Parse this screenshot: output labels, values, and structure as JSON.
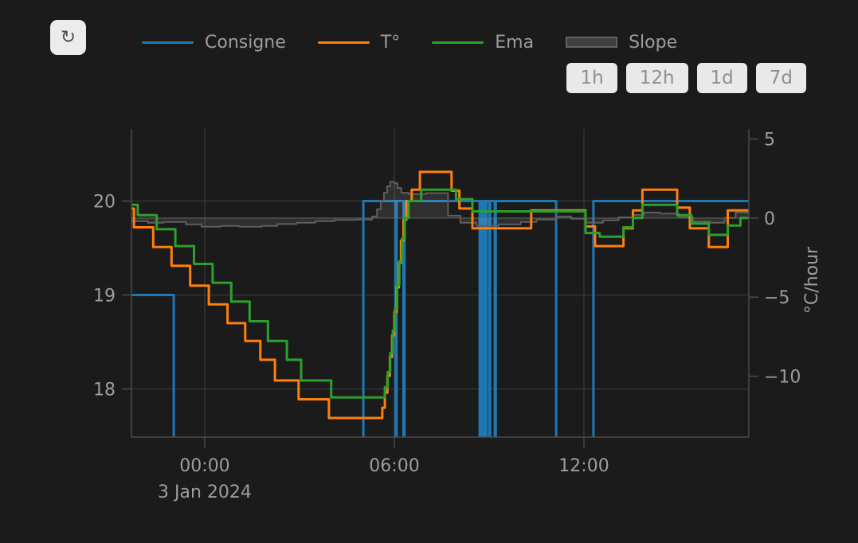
{
  "toolbar": {
    "refresh_icon": "↻"
  },
  "legend": {
    "items": [
      {
        "label": "Consigne",
        "color": "#1f77b4",
        "swatch": "line"
      },
      {
        "label": "T°",
        "color": "#ff7f0e",
        "swatch": "line"
      },
      {
        "label": "Ema",
        "color": "#2ca02c",
        "swatch": "line"
      },
      {
        "label": "Slope",
        "color": "#626262",
        "swatch": "area"
      }
    ]
  },
  "range_buttons": [
    {
      "label": "1h"
    },
    {
      "label": "12h"
    },
    {
      "label": "1d"
    },
    {
      "label": "7d"
    }
  ],
  "chart_data": {
    "type": "line",
    "note": "step lines; x = hours from 2024-01-03 00:00 (negative = evening of 2 Jan)",
    "x_axis": {
      "range": [
        -2.319,
        17.218
      ],
      "ticks": [
        {
          "v": 0,
          "label": "00:00"
        },
        {
          "v": 6,
          "label": "06:00"
        },
        {
          "v": 12,
          "label": "12:00"
        }
      ],
      "date_label": "3 Jan 2024"
    },
    "y_left": {
      "range": [
        17.487,
        20.767
      ],
      "ticks": [
        {
          "v": 20,
          "label": "20"
        },
        {
          "v": 19,
          "label": "19"
        },
        {
          "v": 18,
          "label": "18"
        }
      ]
    },
    "y_right": {
      "title": "°C/hour",
      "range": [
        -13.85,
        5.63
      ],
      "zeroline": true,
      "ticks": [
        {
          "v": 5,
          "label": "5"
        },
        {
          "v": 0,
          "label": "0"
        },
        {
          "v": -5,
          "label": "−5"
        },
        {
          "v": -10,
          "label": "−10"
        }
      ]
    },
    "colors": {
      "background": "#1b1b1b",
      "grid": "#343434",
      "zeroline": "#484848",
      "axis_line": "#4b4b4b",
      "tick_text": "#9d9d9d",
      "slope_fill": "rgba(200,200,200,0.12)"
    },
    "series": [
      {
        "name": "Consigne",
        "axis": "left",
        "color": "#1f77b4",
        "width": 3,
        "points": [
          [
            -2.319,
            19.0
          ],
          [
            -0.98,
            17.0
          ],
          [
            5.02,
            20.0
          ],
          [
            6.04,
            17.0
          ],
          [
            6.07,
            20.0
          ],
          [
            6.29,
            17.0
          ],
          [
            6.32,
            20.0
          ],
          [
            8.7,
            17.0
          ],
          [
            8.73,
            20.0
          ],
          [
            8.8,
            17.0
          ],
          [
            8.83,
            20.0
          ],
          [
            8.88,
            17.0
          ],
          [
            8.91,
            20.0
          ],
          [
            9.0,
            17.0
          ],
          [
            9.03,
            20.0
          ],
          [
            9.18,
            17.0
          ],
          [
            9.21,
            20.0
          ],
          [
            11.12,
            17.0
          ],
          [
            12.3,
            20.0
          ]
        ]
      },
      {
        "name": "Slope",
        "axis": "right",
        "color": "#5e5e5e",
        "width": 2,
        "fill": true,
        "points": [
          [
            -2.319,
            -0.2
          ],
          [
            -1.8,
            -0.3
          ],
          [
            -1.3,
            -0.25
          ],
          [
            -0.6,
            -0.4
          ],
          [
            -0.1,
            -0.55
          ],
          [
            0.5,
            -0.5
          ],
          [
            1.1,
            -0.55
          ],
          [
            1.8,
            -0.5
          ],
          [
            2.3,
            -0.38
          ],
          [
            2.9,
            -0.3
          ],
          [
            3.5,
            -0.2
          ],
          [
            4.1,
            -0.12
          ],
          [
            4.8,
            -0.1
          ],
          [
            5.3,
            0.1
          ],
          [
            5.45,
            0.55
          ],
          [
            5.57,
            1.1
          ],
          [
            5.67,
            1.6
          ],
          [
            5.77,
            2.0
          ],
          [
            5.87,
            2.3
          ],
          [
            6.0,
            2.2
          ],
          [
            6.1,
            1.9
          ],
          [
            6.22,
            1.6
          ],
          [
            6.45,
            1.52
          ],
          [
            7.0,
            1.58
          ],
          [
            7.7,
            0.15
          ],
          [
            8.09,
            -0.3
          ],
          [
            8.6,
            -0.5
          ],
          [
            9.3,
            -0.4
          ],
          [
            10.0,
            -0.25
          ],
          [
            10.5,
            -0.1
          ],
          [
            11.12,
            0.1
          ],
          [
            11.6,
            -0.05
          ],
          [
            12.05,
            -0.3
          ],
          [
            12.6,
            -0.15
          ],
          [
            13.1,
            0.05
          ],
          [
            13.55,
            0.2
          ],
          [
            13.9,
            0.35
          ],
          [
            14.4,
            0.28
          ],
          [
            15.0,
            0.05
          ],
          [
            15.45,
            -0.22
          ],
          [
            16.0,
            -0.3
          ],
          [
            16.45,
            0.0
          ],
          [
            16.8,
            0.35
          ]
        ]
      },
      {
        "name": "T°",
        "axis": "left",
        "color": "#ff7f0e",
        "width": 3,
        "points": [
          [
            -2.319,
            19.92
          ],
          [
            -2.24,
            19.72
          ],
          [
            -1.63,
            19.51
          ],
          [
            -1.05,
            19.31
          ],
          [
            -0.46,
            19.1
          ],
          [
            0.13,
            18.9
          ],
          [
            0.72,
            18.7
          ],
          [
            1.28,
            18.51
          ],
          [
            1.76,
            18.31
          ],
          [
            2.22,
            18.09
          ],
          [
            2.97,
            17.89
          ],
          [
            3.93,
            17.69
          ],
          [
            5.62,
            17.8
          ],
          [
            5.7,
            17.96
          ],
          [
            5.78,
            18.14
          ],
          [
            5.86,
            18.34
          ],
          [
            5.93,
            18.57
          ],
          [
            6.0,
            18.82
          ],
          [
            6.07,
            19.08
          ],
          [
            6.14,
            19.34
          ],
          [
            6.21,
            19.58
          ],
          [
            6.29,
            19.8
          ],
          [
            6.38,
            20.0
          ],
          [
            6.55,
            20.12
          ],
          [
            6.81,
            20.31
          ],
          [
            7.81,
            20.11
          ],
          [
            8.06,
            19.92
          ],
          [
            8.47,
            19.71
          ],
          [
            10.33,
            19.9
          ],
          [
            12.05,
            19.73
          ],
          [
            12.35,
            19.52
          ],
          [
            13.25,
            19.71
          ],
          [
            13.55,
            19.9
          ],
          [
            13.85,
            20.12
          ],
          [
            14.95,
            19.93
          ],
          [
            15.35,
            19.71
          ],
          [
            15.95,
            19.51
          ],
          [
            16.55,
            19.9
          ]
        ]
      },
      {
        "name": "Ema",
        "axis": "left",
        "color": "#2ca02c",
        "width": 3,
        "points": [
          [
            -2.319,
            19.96
          ],
          [
            -2.12,
            19.85
          ],
          [
            -1.52,
            19.7
          ],
          [
            -0.93,
            19.52
          ],
          [
            -0.34,
            19.33
          ],
          [
            0.25,
            19.13
          ],
          [
            0.84,
            18.93
          ],
          [
            1.42,
            18.72
          ],
          [
            2.0,
            18.51
          ],
          [
            2.6,
            18.31
          ],
          [
            3.05,
            18.09
          ],
          [
            4.0,
            17.91
          ],
          [
            5.7,
            18.02
          ],
          [
            5.79,
            18.18
          ],
          [
            5.87,
            18.38
          ],
          [
            5.95,
            18.62
          ],
          [
            6.02,
            18.86
          ],
          [
            6.09,
            19.11
          ],
          [
            6.16,
            19.36
          ],
          [
            6.24,
            19.6
          ],
          [
            6.33,
            19.82
          ],
          [
            6.45,
            20.0
          ],
          [
            6.85,
            20.12
          ],
          [
            7.95,
            20.02
          ],
          [
            8.47,
            19.89
          ],
          [
            12.05,
            19.66
          ],
          [
            12.5,
            19.62
          ],
          [
            13.25,
            19.72
          ],
          [
            13.55,
            19.82
          ],
          [
            13.85,
            19.96
          ],
          [
            14.95,
            19.85
          ],
          [
            15.4,
            19.76
          ],
          [
            15.95,
            19.64
          ],
          [
            16.55,
            19.74
          ],
          [
            16.95,
            19.82
          ]
        ]
      }
    ]
  }
}
